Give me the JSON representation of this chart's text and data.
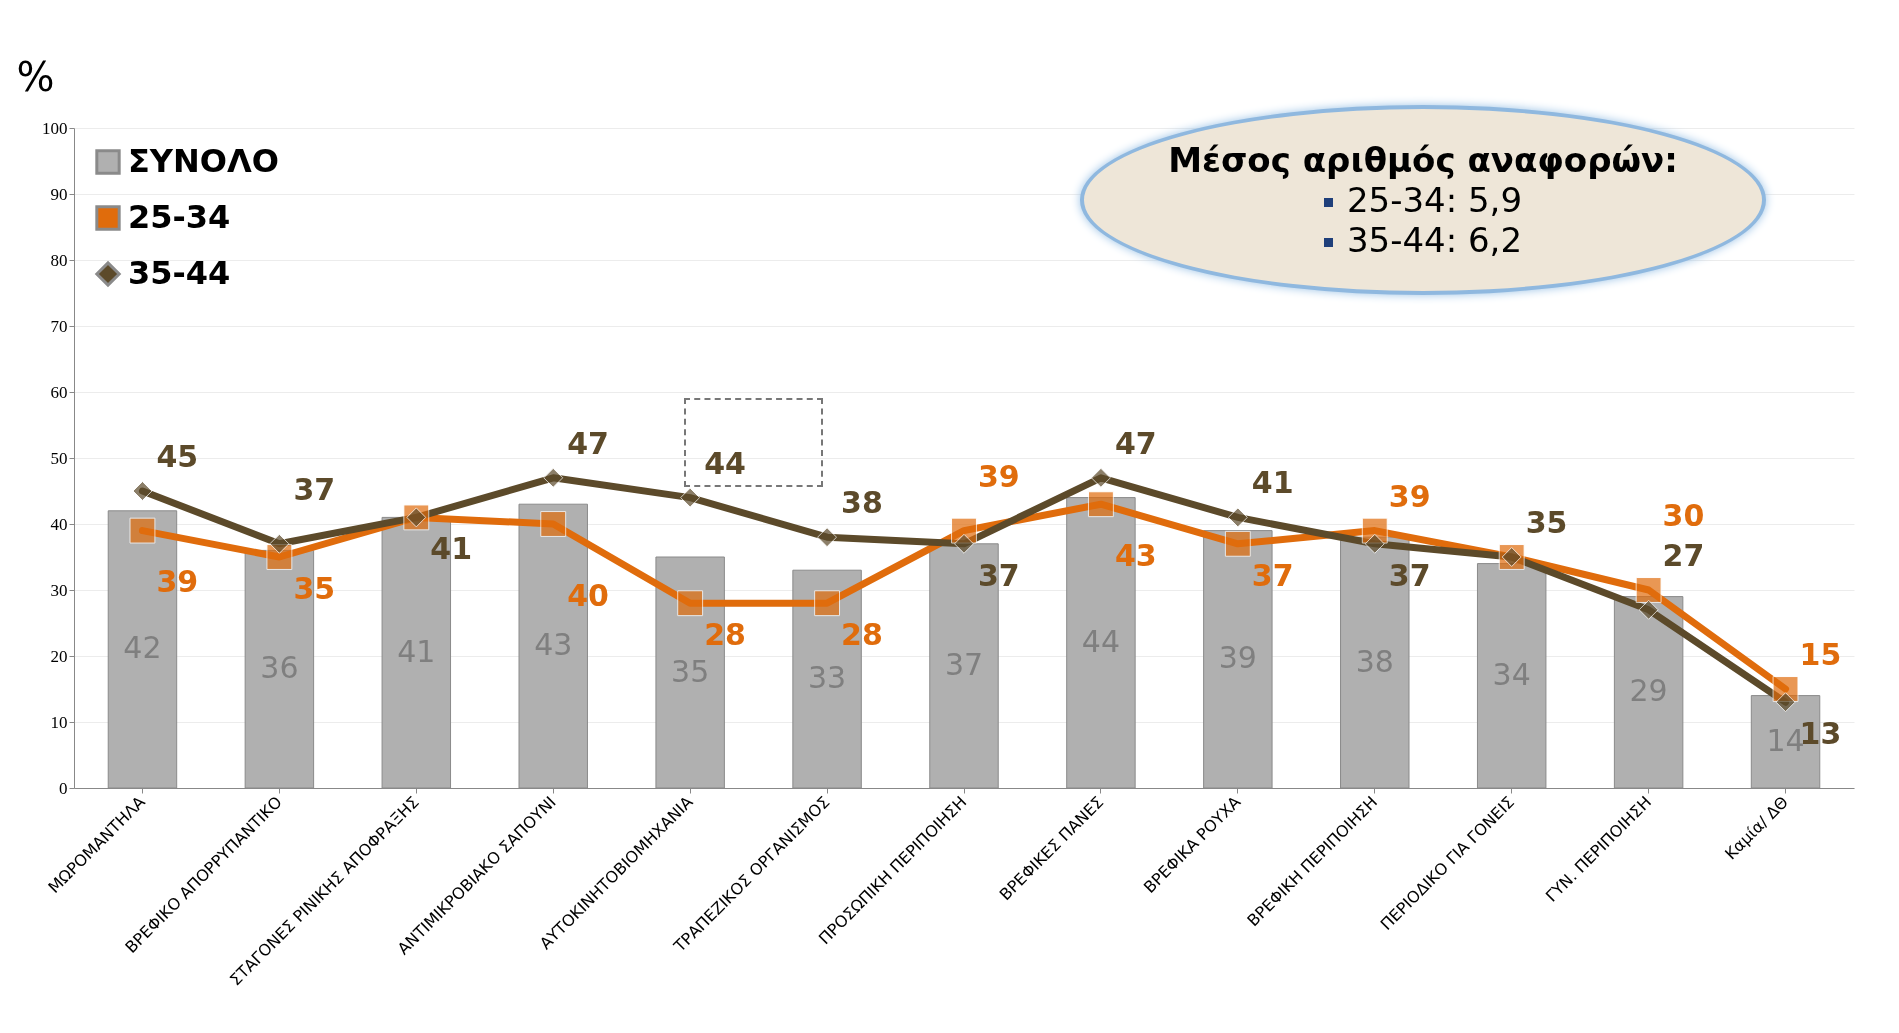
{
  "chart_data": {
    "type": "bar",
    "ylabel": "%",
    "categories": [
      "ΜΩΡΟΜΑΝΤΗΛΑ",
      "ΒΡΕΦΙΚΟ ΑΠΟΡΡΥΠΑΝΤΙΚΟ",
      "ΣΤΑΓΟΝΕΣ ΡΙΝΙΚΗΣ ΑΠΟΦΡΑΞΗΣ",
      "ΑΝΤΙΜΙΚΡΟΒΙΑΚΟ ΣΑΠΟΥΝΙ",
      "ΑΥΤΟΚΙΝΗΤΟΒΙΟΜΗΧΑΝΙΑ",
      "ΤΡΑΠΕΖΙΚΟΣ ΟΡΓΑΝΙΣΜΟΣ",
      "ΠΡΟΣΩΠΙΚΗ ΠΕΡΙΠΟΙΗΣΗ",
      "ΒΡΕΦΙΚΕΣ ΠΑΝΕΣ",
      "ΒΡΕΦΙΚΑ ΡΟΥΧΑ",
      "ΒΡΕΦΙΚΗ ΠΕΡΙΠΟΙΗΣΗ",
      "ΠΕΡΙΟΔΙΚΟ ΓΙΑ ΓΟΝΕΙΣ",
      "ΓΥΝ. ΠΕΡΙΠΟΙΗΣΗ",
      "Καμία/ ΔΘ"
    ],
    "series": [
      {
        "name": "ΣΥΝΟΛΟ",
        "color": "#b0b0b0",
        "values": [
          42,
          36,
          41,
          43,
          35,
          33,
          37,
          44,
          39,
          38,
          34,
          29,
          14
        ],
        "value_labels": [
          "42",
          "36",
          "41",
          "43",
          "35",
          "33",
          "37",
          "44",
          "39",
          "38",
          "34",
          "29",
          "14"
        ]
      },
      {
        "name": "25-34",
        "type": "line",
        "marker": "square",
        "color": "#e06c0c",
        "values": [
          39,
          35,
          41,
          40,
          28,
          28,
          39,
          43,
          37,
          39,
          35,
          30,
          15
        ],
        "value_labels": [
          "39",
          "35",
          null,
          "40",
          "28",
          "28",
          "39",
          "43",
          "37",
          "39",
          null,
          "30",
          "15"
        ]
      },
      {
        "name": "35-44",
        "type": "line",
        "marker": "diamond",
        "color": "#5c4a2a",
        "values": [
          45,
          37,
          41,
          47,
          44,
          38,
          37,
          47,
          41,
          37,
          35,
          27,
          13
        ],
        "value_labels": [
          "45",
          "37",
          "41",
          "47",
          "44",
          "38",
          "37",
          "47",
          "41",
          "37",
          "35",
          "27",
          "13"
        ]
      }
    ],
    "ylim": [
      0,
      100
    ],
    "yticks": [
      0,
      10,
      20,
      30,
      40,
      50,
      60,
      70,
      80,
      90,
      100
    ],
    "grid": "y",
    "legend": "top left",
    "annotations": [
      "Μέσος αριθμός αναφορών:",
      "25-34: 5,9",
      "35-44: 6,2"
    ]
  }
}
